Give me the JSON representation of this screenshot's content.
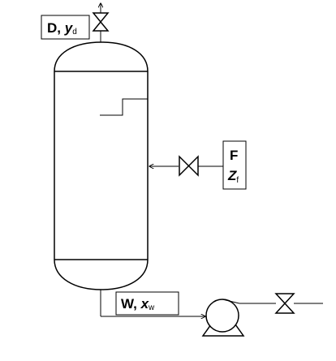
{
  "labels": {
    "distillate_main": "D, ",
    "distillate_var": "y",
    "distillate_sub": "d",
    "feed_main": "F",
    "feed_var": "Z",
    "feed_sub": "f",
    "bottoms_main": "W, ",
    "bottoms_var": "x",
    "bottoms_sub": "w"
  },
  "icons": {
    "top_valve": "gate-valve-icon",
    "feed_valve": "gate-valve-icon",
    "outlet_valve": "gate-valve-icon",
    "pump": "centrifugal-pump-icon"
  },
  "colors": {
    "line": "#000000",
    "background": "#ffffff"
  }
}
